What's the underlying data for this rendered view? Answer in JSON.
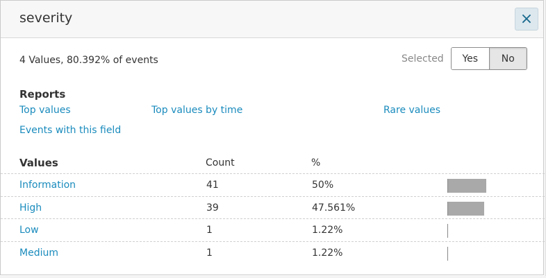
{
  "popup": {
    "title": "severity",
    "close_icon": "×",
    "summary": "4 Values, 80.392% of events",
    "selected_label": "Selected",
    "toggle": {
      "yes": "Yes",
      "no": "No",
      "active": "No"
    }
  },
  "reports": {
    "heading": "Reports",
    "links": {
      "top_values": "Top values",
      "top_values_by_time": "Top values by time",
      "rare_values": "Rare values",
      "events_with_field": "Events with this field"
    }
  },
  "table": {
    "headers": {
      "values": "Values",
      "count": "Count",
      "percent": "%"
    },
    "rows": [
      {
        "name": "Information",
        "count": "41",
        "percent": "50%",
        "fraction": 0.5
      },
      {
        "name": "High",
        "count": "39",
        "percent": "47.561%",
        "fraction": 0.47561
      },
      {
        "name": "Low",
        "count": "1",
        "percent": "1.22%",
        "fraction": 0.0122
      },
      {
        "name": "Medium",
        "count": "1",
        "percent": "1.22%",
        "fraction": 0.0122
      }
    ]
  },
  "colors": {
    "link": "#1a8bbd",
    "bar": "#a9a9a9",
    "header_bg": "#f7f7f7"
  }
}
